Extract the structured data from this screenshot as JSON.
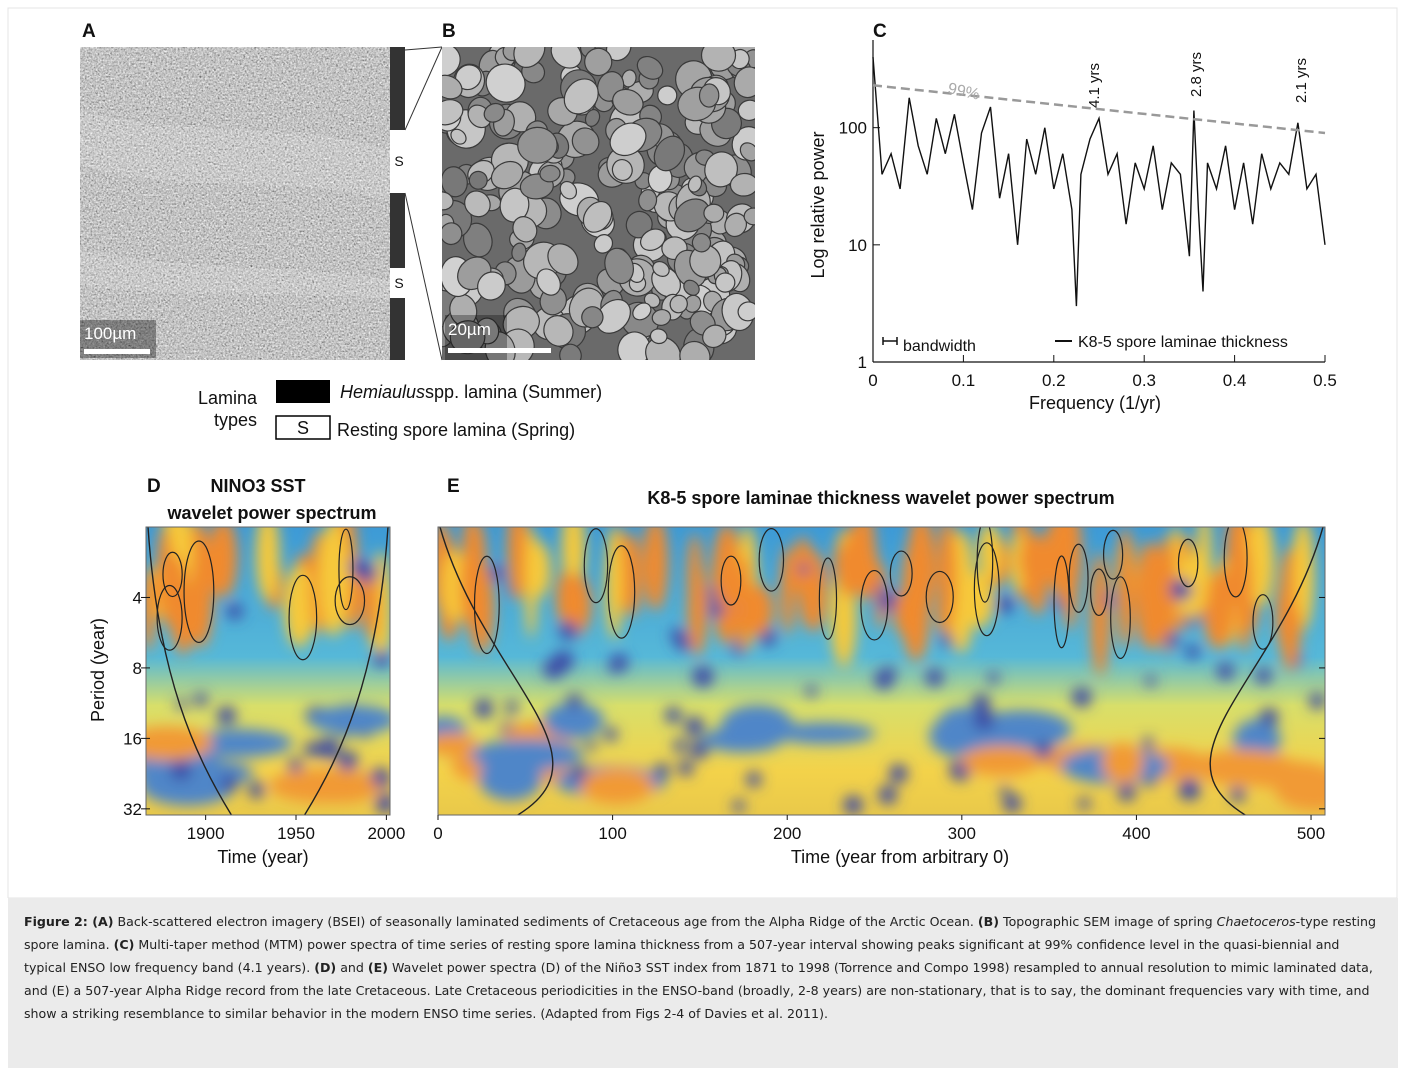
{
  "panel_a": {
    "label": "A",
    "scale_bar": "100µm",
    "lamina_marks": [
      "S",
      "S"
    ]
  },
  "panel_b": {
    "label": "B",
    "scale_bar": "20µm"
  },
  "lamina_legend": {
    "title": [
      "Lamina",
      "types"
    ],
    "summer": {
      "italic": "Hemiaulus",
      "text": "spp. lamina (Summer)"
    },
    "spring": {
      "key": "S",
      "text": "Resting spore lamina (Spring)"
    }
  },
  "panel_c": {
    "label": "C",
    "chart_data": {
      "type": "line",
      "y_label": "Log relative power",
      "x_label": "Frequency (1/yr)",
      "log_y": true,
      "xlim": [
        0,
        0.5
      ],
      "xticks": [
        0,
        0.1,
        0.2,
        0.3,
        0.4,
        0.5
      ],
      "ylim": [
        1,
        560
      ],
      "yticks": [
        1,
        10,
        100
      ],
      "annotations": [
        "4.1 yrs",
        "2.8 yrs",
        "2.1 yrs"
      ],
      "bandwidth_label": "bandwidth",
      "series": [
        {
          "name": "K8-5 spore laminae thickness",
          "color": "#111111",
          "x": [
            0,
            0.01,
            0.02,
            0.03,
            0.04,
            0.05,
            0.06,
            0.07,
            0.08,
            0.09,
            0.1,
            0.11,
            0.12,
            0.13,
            0.14,
            0.15,
            0.16,
            0.17,
            0.18,
            0.19,
            0.2,
            0.21,
            0.22,
            0.225,
            0.23,
            0.24,
            0.25,
            0.26,
            0.27,
            0.28,
            0.29,
            0.3,
            0.31,
            0.32,
            0.33,
            0.34,
            0.35,
            0.355,
            0.36,
            0.365,
            0.37,
            0.38,
            0.39,
            0.4,
            0.41,
            0.42,
            0.43,
            0.44,
            0.45,
            0.46,
            0.47,
            0.48,
            0.49,
            0.5
          ],
          "values": [
            400,
            40,
            60,
            30,
            180,
            70,
            40,
            120,
            60,
            130,
            50,
            20,
            90,
            150,
            25,
            60,
            10,
            80,
            40,
            100,
            30,
            60,
            20,
            3,
            40,
            80,
            120,
            40,
            60,
            15,
            50,
            30,
            70,
            20,
            50,
            40,
            8,
            140,
            20,
            4,
            50,
            30,
            70,
            20,
            50,
            15,
            60,
            30,
            50,
            40,
            110,
            30,
            40,
            10
          ]
        },
        {
          "name": "99%",
          "color": "#999999",
          "dashed": true,
          "x": [
            0,
            0.5
          ],
          "values": [
            230,
            90
          ]
        }
      ]
    }
  },
  "panel_d": {
    "label": "D",
    "chart_data": {
      "type": "heatmap",
      "title": [
        "NINO3 SST",
        "wavelet power spectrum"
      ],
      "x_label": "Time (year)",
      "y_label": "Period (year)",
      "log_y": true,
      "xlim": [
        1867,
        2002
      ],
      "xticks": [
        1900,
        1950,
        2000
      ],
      "ylim": [
        2,
        34
      ],
      "yticks": [
        4,
        8,
        16,
        32
      ]
    }
  },
  "panel_e": {
    "label": "E",
    "chart_data": {
      "type": "heatmap",
      "title": "K8-5 spore laminae thickness wavelet power spectrum",
      "x_label": "Time (year from arbitrary 0)",
      "log_y": true,
      "xlim": [
        0,
        508
      ],
      "xticks": [
        0,
        100,
        200,
        300,
        400,
        500
      ],
      "ylim": [
        2,
        34
      ],
      "yticks": [
        4,
        8,
        16,
        32
      ]
    }
  },
  "caption": [
    {
      "text": "Figure 2: ",
      "style": "bold"
    },
    {
      "text": "(A)",
      "style": "bold"
    },
    {
      "text": " Back-scattered electron imagery (BSEI) of seasonally laminated sediments of Cretaceous age from the Alpha Ridge of the Arctic Ocean. ",
      "style": "normal"
    },
    {
      "text": "(B)",
      "style": "bold"
    },
    {
      "text": " Topographic SEM image of spring ",
      "style": "normal"
    },
    {
      "text": "Chaetoceros",
      "style": "italic"
    },
    {
      "text": "-type resting spore lamina. ",
      "style": "normal"
    },
    {
      "text": "(C)",
      "style": "bold"
    },
    {
      "text": " Multi-taper method (MTM) power spectra of time series of resting spore lamina thickness from a 507-year interval showing peaks significant at 99% confidence level in the quasi-biennial and typical ENSO low frequency band (4.1 years). ",
      "style": "normal"
    },
    {
      "text": "(D)",
      "style": "bold"
    },
    {
      "text": " and ",
      "style": "normal"
    },
    {
      "text": "(E)",
      "style": "bold"
    },
    {
      "text": " Wavelet power spectra (D) of the Niño3 SST index from 1871 to 1998 (Torrence and Compo 1998) resampled to annual resolution to mimic laminated data, and (E) a 507-year Alpha Ridge record from the late Cretaceous. Late Cretaceous periodicities in the ENSO-band (broadly, 2-8 years) are non-stationary, that is to say, the dominant frequencies vary with time, and show a striking resemblance to similar behavior in the modern ENSO time series. (Adapted from Figs 2-4 of Davies et al. 2011).",
      "style": "normal"
    }
  ]
}
